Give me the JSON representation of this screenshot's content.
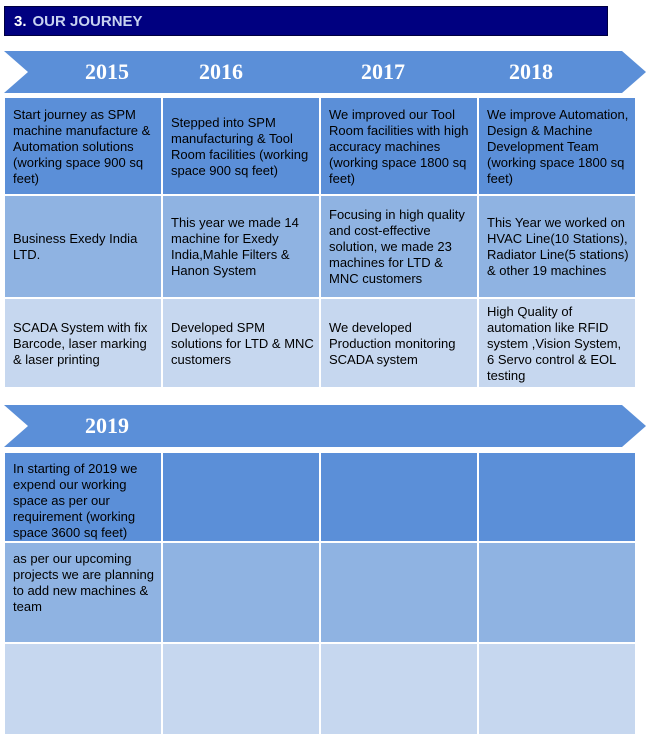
{
  "section": {
    "number": "3.",
    "title": "OUR JOURNEY"
  },
  "colors": {
    "header_bg": "#000080",
    "arrow": "#5b8fd8",
    "row_dark": "#5b8fd8",
    "row_mid": "#8fb3e2",
    "row_light": "#c6d7ef"
  },
  "timeline1": {
    "years": [
      "2015",
      "2016",
      "2017",
      "2018"
    ],
    "rows": [
      [
        "Start journey as SPM machine manufacture & Automation solutions (working space 900 sq feet)",
        "Stepped into SPM manufacturing & Tool Room facilities (working space 900 sq feet)",
        "We improved our Tool Room facilities with high accuracy machines (working space 1800 sq feet)",
        "We improve Automation, Design & Machine Development Team (working space 1800 sq feet)"
      ],
      [
        "Business Exedy India LTD.",
        "This year we made 14 machine  for Exedy India,Mahle Filters & Hanon System",
        "Focusing in high quality and cost-effective solution, we made 23 machines for LTD & MNC customers",
        "This Year we  worked on HVAC Line(10 Stations), Radiator Line(5 stations)  & other 19 machines"
      ],
      [
        "SCADA System with fix Barcode, laser marking & laser printing",
        "Developed SPM solutions for LTD & MNC customers",
        "We developed Production monitoring SCADA system",
        "High Quality of automation like RFID system ,Vision System, 6 Servo control & EOL testing"
      ]
    ]
  },
  "timeline2": {
    "years": [
      "2019"
    ],
    "rows": [
      [
        "In starting of 2019 we expend our  working space as per our requirement (working space 3600 sq feet)",
        "",
        "",
        ""
      ],
      [
        "as per our upcoming projects we are planning to add new machines & team",
        "",
        "",
        ""
      ],
      [
        "",
        "",
        "",
        ""
      ]
    ]
  }
}
